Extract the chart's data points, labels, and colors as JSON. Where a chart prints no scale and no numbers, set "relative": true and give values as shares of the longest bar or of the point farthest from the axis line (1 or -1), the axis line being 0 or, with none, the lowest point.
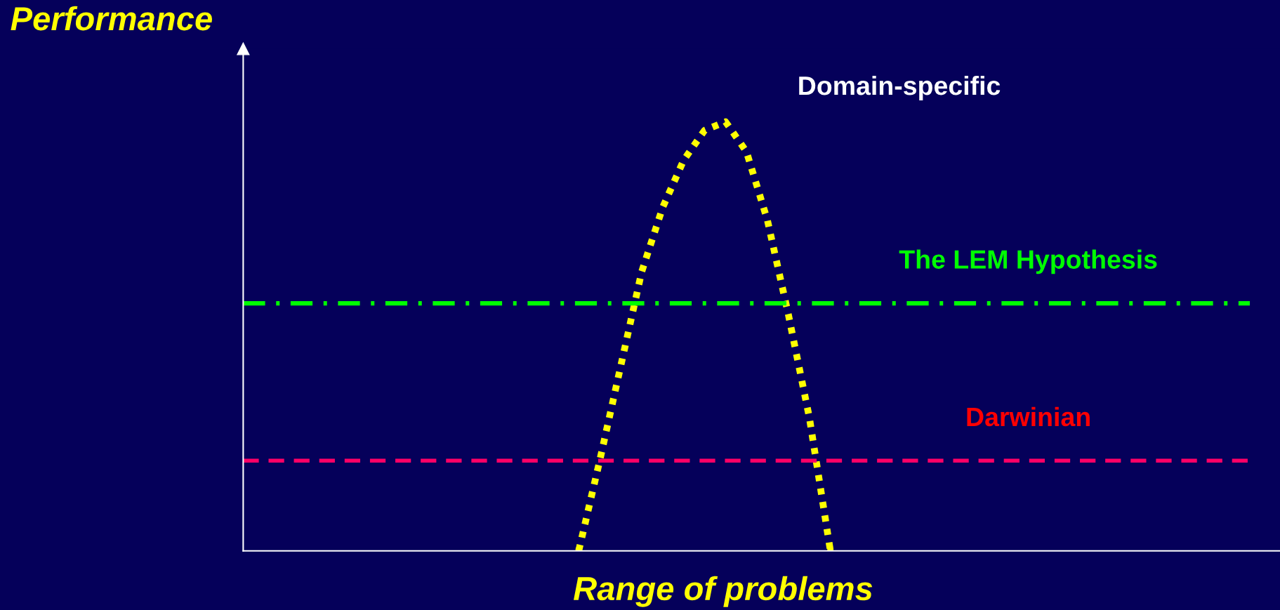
{
  "chart_data": {
    "type": "line",
    "relative": true,
    "ylabel": "Performance",
    "xlabel": "Range of problems",
    "marker": "none",
    "categories": [
      null,
      null,
      null,
      null,
      null,
      null,
      null,
      null,
      null,
      null,
      null,
      null,
      null,
      null,
      null,
      null,
      null,
      null,
      null,
      null,
      null,
      null,
      null,
      null,
      null,
      null,
      null,
      null,
      null,
      null,
      null,
      null,
      null,
      null,
      null,
      null,
      null,
      null,
      null,
      null,
      null,
      null,
      null,
      null,
      null,
      null,
      null,
      null,
      null
    ],
    "series": [
      {
        "name": "Domain-specific",
        "color": "#ffff00",
        "line_style": "dotted",
        "values": [
          null,
          null,
          null,
          null,
          null,
          null,
          null,
          null,
          null,
          null,
          null,
          null,
          null,
          null,
          null,
          null,
          0,
          0.21,
          0.43,
          0.65,
          0.8,
          0.91,
          0.98,
          1,
          0.93,
          0.77,
          0.55,
          0.31,
          0,
          null,
          null,
          null,
          null,
          null,
          null,
          null,
          null,
          null,
          null,
          null,
          null,
          null,
          null,
          null,
          null,
          null,
          null,
          null,
          null
        ]
      },
      {
        "name": "The LEM Hypothesis",
        "color": "#00ff00",
        "line_style": "dashdot",
        "values": [
          0.577,
          0.577,
          0.577,
          0.577,
          0.577,
          0.577,
          0.577,
          0.577,
          0.577,
          0.577,
          0.577,
          0.577,
          0.577,
          0.577,
          0.577,
          0.577,
          0.577,
          0.577,
          0.577,
          0.577,
          0.577,
          0.577,
          0.577,
          0.577,
          0.577,
          0.577,
          0.577,
          0.577,
          0.577,
          0.577,
          0.577,
          0.577,
          0.577,
          0.577,
          0.577,
          0.577,
          0.577,
          0.577,
          0.577,
          0.577,
          0.577,
          0.577,
          0.577,
          0.577,
          0.577,
          0.577,
          0.577,
          0.577,
          0.577
        ]
      },
      {
        "name": "Darwinian",
        "color": "#ff0066",
        "line_style": "dashed",
        "values": [
          0.21,
          0.21,
          0.21,
          0.21,
          0.21,
          0.21,
          0.21,
          0.21,
          0.21,
          0.21,
          0.21,
          0.21,
          0.21,
          0.21,
          0.21,
          0.21,
          0.21,
          0.21,
          0.21,
          0.21,
          0.21,
          0.21,
          0.21,
          0.21,
          0.21,
          0.21,
          0.21,
          0.21,
          0.21,
          0.21,
          0.21,
          0.21,
          0.21,
          0.21,
          0.21,
          0.21,
          0.21,
          0.21,
          0.21,
          0.21,
          0.21,
          0.21,
          0.21,
          0.21,
          0.21,
          0.21,
          0.21,
          0.21,
          0.21
        ]
      }
    ]
  }
}
